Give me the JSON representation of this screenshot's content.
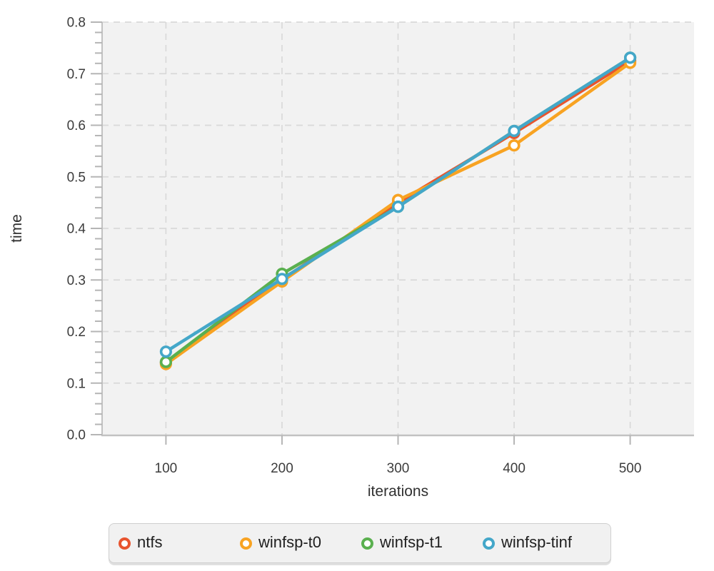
{
  "figure": {
    "background": "#ffffff",
    "plot_background": "#f2f2f2",
    "grid_color": "#d9d9d9",
    "spine_color": "#c2c2c2",
    "tick_color": "#b5b5b5",
    "tick_label_color": "#3c3c3c",
    "axis_title_color": "#303030",
    "legend": {
      "background": "#f1f1f1",
      "border_color": "#cfcfcf",
      "text_color": "#1f1f1f",
      "position": "bottom"
    }
  },
  "chart_data": {
    "type": "line",
    "title": "",
    "xlabel": "iterations",
    "ylabel": "time",
    "x": [
      100,
      200,
      300,
      400,
      500
    ],
    "series": [
      {
        "name": "ntfs",
        "color": "#e8542f",
        "values": [
          0.14,
          0.301,
          0.45,
          0.585,
          0.725
        ]
      },
      {
        "name": "winfsp-t0",
        "color": "#f8a322",
        "values": [
          0.137,
          0.297,
          0.455,
          0.561,
          0.721
        ]
      },
      {
        "name": "winfsp-t1",
        "color": "#5ab04f",
        "values": [
          0.141,
          0.312,
          0.442,
          0.589,
          0.731
        ]
      },
      {
        "name": "winfsp-tinf",
        "color": "#44a7c9",
        "values": [
          0.161,
          0.302,
          0.442,
          0.589,
          0.731
        ]
      }
    ],
    "xlim": [
      45,
      555
    ],
    "ylim": [
      0,
      0.8
    ],
    "xticks": [
      100,
      200,
      300,
      400,
      500
    ],
    "xtick_labels": [
      "100",
      "200",
      "300",
      "400",
      "500"
    ],
    "yticks": [
      0,
      0.1,
      0.2,
      0.3,
      0.4,
      0.5,
      0.6,
      0.7,
      0.8
    ],
    "ytick_labels": [
      "0.0",
      "0.1",
      "0.2",
      "0.3",
      "0.4",
      "0.5",
      "0.6",
      "0.7",
      "0.8"
    ],
    "y_minor_tick_step": 0.02,
    "grid": "dashed",
    "legend_position": "bottom",
    "marker": "open-circle",
    "legend_entries": [
      "ntfs",
      "winfsp-t0",
      "winfsp-t1",
      "winfsp-tinf"
    ]
  }
}
